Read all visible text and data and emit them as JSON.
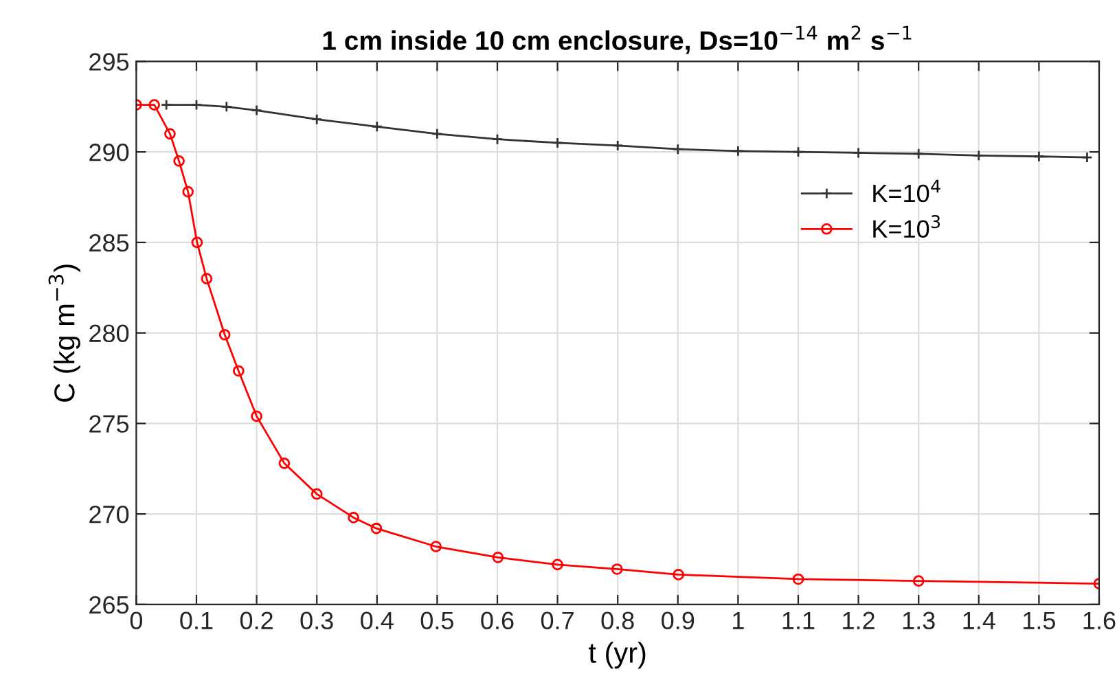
{
  "chart_data": {
    "type": "line",
    "title": "1 cm inside 10 cm enclosure, Ds=10$^{−14}$ m$^{2}$ s$^{−1}$",
    "xlabel": "t (yr)",
    "ylabel": "C (kg m$^{−3}$)",
    "xlim": [
      0,
      1.6
    ],
    "ylim": [
      265,
      295
    ],
    "xticks": [
      0,
      0.1,
      0.2,
      0.3,
      0.4,
      0.5,
      0.6,
      0.7,
      0.8,
      0.9,
      1,
      1.1,
      1.2,
      1.3,
      1.4,
      1.5,
      1.6
    ],
    "yticks": [
      265,
      270,
      275,
      280,
      285,
      290,
      295
    ],
    "grid": true,
    "legend": "right",
    "series": [
      {
        "name": "K=10$^{4}$",
        "color": "#333333",
        "marker": "cross",
        "x": [
          0.05,
          0.1,
          0.15,
          0.2,
          0.3,
          0.4,
          0.5,
          0.6,
          0.7,
          0.8,
          0.9,
          1.0,
          1.1,
          1.2,
          1.3,
          1.4,
          1.5,
          1.58
        ],
        "values": [
          292.6,
          292.6,
          292.5,
          292.3,
          291.8,
          291.4,
          291.0,
          290.7,
          290.5,
          290.35,
          290.15,
          290.05,
          290.0,
          289.95,
          289.9,
          289.8,
          289.75,
          289.7
        ]
      },
      {
        "name": "K=10$^{3}$",
        "color": "#ff0000",
        "marker": "circle",
        "x": [
          0,
          0.03,
          0.056,
          0.071,
          0.086,
          0.101,
          0.117,
          0.147,
          0.17,
          0.2,
          0.246,
          0.3,
          0.361,
          0.399,
          0.498,
          0.601,
          0.7,
          0.799,
          0.901,
          1.1,
          1.3,
          1.6
        ],
        "values": [
          292.6,
          292.6,
          291.0,
          289.5,
          287.8,
          285.0,
          283.0,
          279.9,
          277.9,
          275.4,
          272.8,
          271.1,
          269.8,
          269.2,
          268.2,
          267.6,
          267.2,
          266.95,
          266.65,
          266.4,
          266.3,
          266.15
        ]
      }
    ]
  }
}
